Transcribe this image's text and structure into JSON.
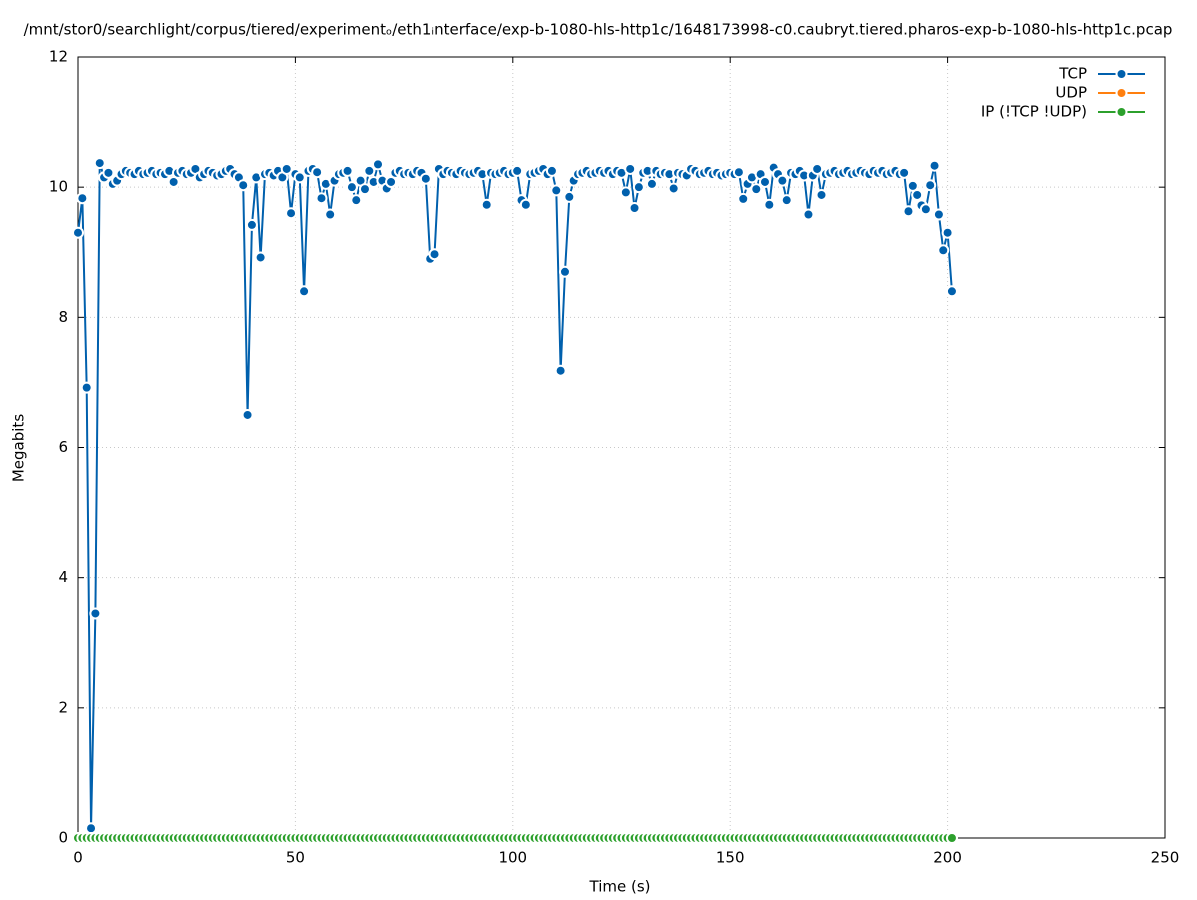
{
  "chart_data": {
    "type": "line",
    "title": "/mnt/stor0/searchlight/corpus/tiered/experimentₒ/eth1ᵢnterface/exp-b-1080-hls-http1c/1648173998-c0.caubryt.tiered.pharos-exp-b-1080-hls-http1c.pcap",
    "x_label": "Time (s)",
    "y_label": "Megabits",
    "xlim": [
      0,
      250
    ],
    "xticks": [
      0,
      50,
      100,
      150,
      200,
      250
    ],
    "ylim": [
      0,
      12
    ],
    "yticks": [
      0,
      2,
      4,
      6,
      8,
      10,
      12
    ],
    "grid": true,
    "legend": "top-right",
    "x": [
      0,
      1,
      2,
      3,
      4,
      5,
      6,
      7,
      8,
      9,
      10,
      11,
      12,
      13,
      14,
      15,
      16,
      17,
      18,
      19,
      20,
      21,
      22,
      23,
      24,
      25,
      26,
      27,
      28,
      29,
      30,
      31,
      32,
      33,
      34,
      35,
      36,
      37,
      38,
      39,
      40,
      41,
      42,
      43,
      44,
      45,
      46,
      47,
      48,
      49,
      50,
      51,
      52,
      53,
      54,
      55,
      56,
      57,
      58,
      59,
      60,
      61,
      62,
      63,
      64,
      65,
      66,
      67,
      68,
      69,
      70,
      71,
      72,
      73,
      74,
      75,
      76,
      77,
      78,
      79,
      80,
      81,
      82,
      83,
      84,
      85,
      86,
      87,
      88,
      89,
      90,
      91,
      92,
      93,
      94,
      95,
      96,
      97,
      98,
      99,
      100,
      101,
      102,
      103,
      104,
      105,
      106,
      107,
      108,
      109,
      110,
      111,
      112,
      113,
      114,
      115,
      116,
      117,
      118,
      119,
      120,
      121,
      122,
      123,
      124,
      125,
      126,
      127,
      128,
      129,
      130,
      131,
      132,
      133,
      134,
      135,
      136,
      137,
      138,
      139,
      140,
      141,
      142,
      143,
      144,
      145,
      146,
      147,
      148,
      149,
      150,
      151,
      152,
      153,
      154,
      155,
      156,
      157,
      158,
      159,
      160,
      161,
      162,
      163,
      164,
      165,
      166,
      167,
      168,
      169,
      170,
      171,
      172,
      173,
      174,
      175,
      176,
      177,
      178,
      179,
      180,
      181,
      182,
      183,
      184,
      185,
      186,
      187,
      188,
      189,
      190,
      191,
      192,
      193,
      194,
      195,
      196,
      197,
      198,
      199,
      200,
      201
    ],
    "series": [
      {
        "name": "TCP",
        "color": "#0060ad",
        "values": [
          9.3,
          9.83,
          6.92,
          0.15,
          3.45,
          10.37,
          10.15,
          10.22,
          10.05,
          10.1,
          10.2,
          10.25,
          10.22,
          10.2,
          10.25,
          10.2,
          10.22,
          10.25,
          10.2,
          10.22,
          10.2,
          10.25,
          10.08,
          10.22,
          10.25,
          10.2,
          10.22,
          10.28,
          10.15,
          10.2,
          10.25,
          10.22,
          10.18,
          10.2,
          10.25,
          10.28,
          10.2,
          10.15,
          10.03,
          6.5,
          9.42,
          10.15,
          8.92,
          10.2,
          10.22,
          10.18,
          10.25,
          10.15,
          10.28,
          9.6,
          10.2,
          10.15,
          8.4,
          10.25,
          10.28,
          10.23,
          9.83,
          10.05,
          9.58,
          10.1,
          10.2,
          10.22,
          10.25,
          10.0,
          9.8,
          10.1,
          9.97,
          10.25,
          10.08,
          10.35,
          10.1,
          9.98,
          10.08,
          10.22,
          10.25,
          10.2,
          10.22,
          10.2,
          10.25,
          10.22,
          10.13,
          8.9,
          8.97,
          10.28,
          10.2,
          10.25,
          10.22,
          10.2,
          10.25,
          10.22,
          10.2,
          10.22,
          10.25,
          10.2,
          9.73,
          10.22,
          10.2,
          10.22,
          10.25,
          10.2,
          10.22,
          10.25,
          9.8,
          9.73,
          10.2,
          10.22,
          10.25,
          10.28,
          10.2,
          10.25,
          9.95,
          7.18,
          8.7,
          9.85,
          10.1,
          10.2,
          10.22,
          10.25,
          10.2,
          10.22,
          10.25,
          10.22,
          10.25,
          10.2,
          10.25,
          10.22,
          9.92,
          10.28,
          9.68,
          10.0,
          10.22,
          10.25,
          10.05,
          10.25,
          10.2,
          10.22,
          10.2,
          9.98,
          10.22,
          10.2,
          10.18,
          10.28,
          10.25,
          10.2,
          10.22,
          10.25,
          10.2,
          10.22,
          10.18,
          10.2,
          10.22,
          10.2,
          10.23,
          9.82,
          10.05,
          10.15,
          9.97,
          10.2,
          10.08,
          9.73,
          10.3,
          10.2,
          10.1,
          9.8,
          10.22,
          10.2,
          10.25,
          10.18,
          9.58,
          10.18,
          10.28,
          9.88,
          10.2,
          10.22,
          10.25,
          10.2,
          10.22,
          10.25,
          10.2,
          10.22,
          10.25,
          10.22,
          10.2,
          10.25,
          10.22,
          10.25,
          10.2,
          10.22,
          10.25,
          10.2,
          10.22,
          9.63,
          10.02,
          9.88,
          9.72,
          9.66,
          10.03,
          10.33,
          9.58,
          9.03,
          9.3,
          8.4
        ]
      },
      {
        "name": "UDP",
        "color": "#ff7f0e",
        "values": [
          0,
          0,
          0,
          0,
          0,
          0,
          0,
          0,
          0,
          0,
          0,
          0,
          0,
          0,
          0,
          0,
          0,
          0,
          0,
          0,
          0,
          0,
          0,
          0,
          0,
          0,
          0,
          0,
          0,
          0,
          0,
          0,
          0,
          0,
          0,
          0,
          0,
          0,
          0,
          0,
          0,
          0,
          0,
          0,
          0,
          0,
          0,
          0,
          0,
          0,
          0,
          0,
          0,
          0,
          0,
          0,
          0,
          0,
          0,
          0,
          0,
          0,
          0,
          0,
          0,
          0,
          0,
          0,
          0,
          0,
          0,
          0,
          0,
          0,
          0,
          0,
          0,
          0,
          0,
          0,
          0,
          0,
          0,
          0,
          0,
          0,
          0,
          0,
          0,
          0,
          0,
          0,
          0,
          0,
          0,
          0,
          0,
          0,
          0,
          0,
          0,
          0,
          0,
          0,
          0,
          0,
          0,
          0,
          0,
          0,
          0,
          0,
          0,
          0,
          0,
          0,
          0,
          0,
          0,
          0,
          0,
          0,
          0,
          0,
          0,
          0,
          0,
          0,
          0,
          0,
          0,
          0,
          0,
          0,
          0,
          0,
          0,
          0,
          0,
          0,
          0,
          0,
          0,
          0,
          0,
          0,
          0,
          0,
          0,
          0,
          0,
          0,
          0,
          0,
          0,
          0,
          0,
          0,
          0,
          0,
          0,
          0,
          0,
          0,
          0,
          0,
          0,
          0,
          0,
          0,
          0,
          0,
          0,
          0,
          0,
          0,
          0,
          0,
          0,
          0,
          0,
          0,
          0,
          0,
          0,
          0,
          0,
          0,
          0,
          0,
          0,
          0,
          0,
          0,
          0,
          0,
          0,
          0,
          0,
          0,
          0,
          0
        ]
      },
      {
        "name": "IP (!TCP  !UDP)",
        "color": "#2ca02c",
        "values": [
          0,
          0,
          0,
          0,
          0,
          0,
          0,
          0,
          0,
          0,
          0,
          0,
          0,
          0,
          0,
          0,
          0,
          0,
          0,
          0,
          0,
          0,
          0,
          0,
          0,
          0,
          0,
          0,
          0,
          0,
          0,
          0,
          0,
          0,
          0,
          0,
          0,
          0,
          0,
          0,
          0,
          0,
          0,
          0,
          0,
          0,
          0,
          0,
          0,
          0,
          0,
          0,
          0,
          0,
          0,
          0,
          0,
          0,
          0,
          0,
          0,
          0,
          0,
          0,
          0,
          0,
          0,
          0,
          0,
          0,
          0,
          0,
          0,
          0,
          0,
          0,
          0,
          0,
          0,
          0,
          0,
          0,
          0,
          0,
          0,
          0,
          0,
          0,
          0,
          0,
          0,
          0,
          0,
          0,
          0,
          0,
          0,
          0,
          0,
          0,
          0,
          0,
          0,
          0,
          0,
          0,
          0,
          0,
          0,
          0,
          0,
          0,
          0,
          0,
          0,
          0,
          0,
          0,
          0,
          0,
          0,
          0,
          0,
          0,
          0,
          0,
          0,
          0,
          0,
          0,
          0,
          0,
          0,
          0,
          0,
          0,
          0,
          0,
          0,
          0,
          0,
          0,
          0,
          0,
          0,
          0,
          0,
          0,
          0,
          0,
          0,
          0,
          0,
          0,
          0,
          0,
          0,
          0,
          0,
          0,
          0,
          0,
          0,
          0,
          0,
          0,
          0,
          0,
          0,
          0,
          0,
          0,
          0,
          0,
          0,
          0,
          0,
          0,
          0,
          0,
          0,
          0,
          0,
          0,
          0,
          0,
          0,
          0,
          0,
          0,
          0,
          0,
          0,
          0,
          0,
          0,
          0,
          0,
          0,
          0,
          0,
          0
        ]
      }
    ]
  }
}
